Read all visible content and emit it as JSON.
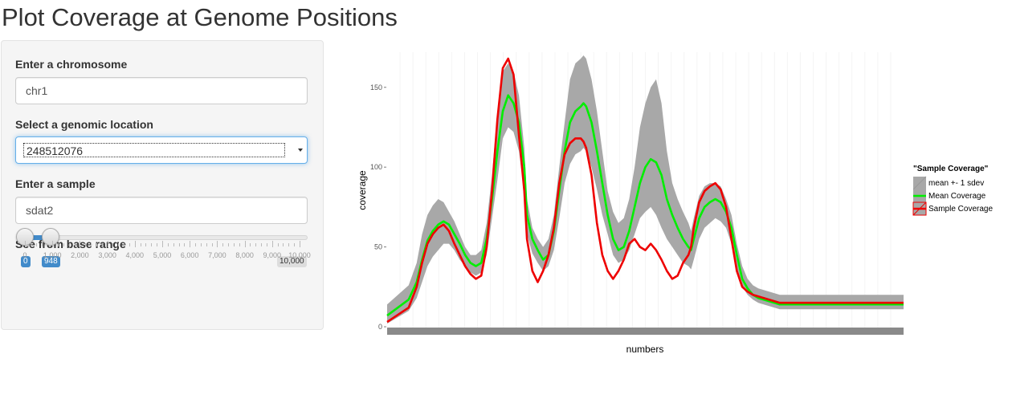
{
  "page": {
    "title": "Plot Coverage at Genome Positions"
  },
  "sidebar": {
    "chromosome": {
      "label": "Enter a chromosome",
      "value": "chr1"
    },
    "location": {
      "label": "Select a genomic location",
      "selected": "248512076"
    },
    "sample": {
      "label": "Enter a sample",
      "value": "sdat2"
    },
    "range": {
      "label": "See from base range",
      "min_badge": "0",
      "value_badge": "948",
      "max_badge": "10,000",
      "selected_from": 0,
      "selected_to": 948,
      "min": 0,
      "max": 10000,
      "tick_labels": [
        "0",
        "1,000",
        "2,000",
        "3,000",
        "4,000",
        "5,000",
        "6,000",
        "7,000",
        "8,000",
        "9,000",
        "10,000"
      ]
    }
  },
  "colors": {
    "band": "#a8a8a8",
    "mean": "#00ee00",
    "sample": "#ee0000",
    "accent": "#428bca"
  },
  "chart_data": {
    "type": "line",
    "title": "",
    "xlabel": "numbers",
    "ylabel": "coverage",
    "ylim": [
      -5,
      172
    ],
    "yticks": [
      0,
      50,
      100,
      150
    ],
    "ytick_labels": [
      "0",
      "50",
      "100",
      "150"
    ],
    "grid": true,
    "legend": {
      "title": "\"Sample Coverage\"",
      "placement": "right",
      "entries": [
        "mean +- 1 sdev",
        "Mean Coverage",
        "Sample Coverage"
      ]
    },
    "x": [
      0,
      40,
      55,
      65,
      75,
      85,
      95,
      105,
      115,
      125,
      135,
      145,
      155,
      165,
      175,
      185,
      195,
      205,
      215,
      225,
      235,
      245,
      255,
      260,
      270,
      280,
      290,
      300,
      310,
      320,
      330,
      340,
      350,
      360,
      365,
      370,
      380,
      390,
      400,
      410,
      420,
      430,
      440,
      450,
      460,
      470,
      480,
      490,
      500,
      510,
      520,
      530,
      540,
      550,
      560,
      565,
      570,
      580,
      590,
      600,
      610,
      620,
      630,
      640,
      650,
      660,
      670,
      680,
      690,
      700,
      710,
      720,
      730,
      740,
      750,
      760,
      770,
      780,
      790,
      800,
      810,
      820,
      830,
      840,
      850,
      860,
      870,
      880,
      890,
      900,
      910,
      920,
      930,
      940,
      950,
      955,
      960
    ],
    "series": [
      {
        "name": "Mean Coverage",
        "values": [
          7,
          17,
          28,
          42,
          54,
          60,
          64,
          66,
          64,
          58,
          52,
          45,
          40,
          38,
          40,
          55,
          80,
          110,
          135,
          145,
          140,
          128,
          100,
          70,
          55,
          48,
          42,
          45,
          60,
          85,
          110,
          128,
          135,
          138,
          140,
          138,
          128,
          110,
          90,
          70,
          55,
          48,
          50,
          60,
          75,
          90,
          100,
          105,
          103,
          95,
          80,
          70,
          62,
          55,
          50,
          48,
          55,
          68,
          75,
          78,
          80,
          78,
          72,
          62,
          45,
          30,
          24,
          20,
          18,
          17,
          16,
          15,
          14,
          14,
          14,
          14,
          14,
          14,
          14,
          14,
          14,
          14,
          14,
          14,
          14,
          14,
          14,
          14,
          14,
          14,
          14,
          14,
          14,
          14,
          14,
          14,
          14
        ]
      },
      {
        "name": "Sample Coverage",
        "values": [
          3,
          12,
          25,
          40,
          52,
          58,
          62,
          64,
          60,
          52,
          45,
          38,
          33,
          30,
          32,
          50,
          85,
          130,
          162,
          168,
          158,
          120,
          85,
          55,
          35,
          28,
          35,
          45,
          62,
          90,
          108,
          115,
          118,
          118,
          116,
          112,
          95,
          65,
          45,
          35,
          30,
          35,
          42,
          52,
          55,
          50,
          48,
          52,
          48,
          42,
          35,
          30,
          32,
          40,
          45,
          50,
          62,
          78,
          85,
          88,
          90,
          86,
          75,
          55,
          35,
          25,
          22,
          20,
          19,
          18,
          17,
          16,
          15,
          15,
          15,
          15,
          15,
          15,
          15,
          15,
          15,
          15,
          15,
          15,
          15,
          15,
          15,
          15,
          15,
          15,
          15,
          15,
          15,
          15,
          15,
          15,
          15
        ]
      },
      {
        "name": "mean +- 1 sdev",
        "values": [
          14,
          26,
          40,
          58,
          70,
          76,
          80,
          78,
          72,
          66,
          58,
          50,
          45,
          45,
          48,
          65,
          95,
          135,
          160,
          165,
          160,
          145,
          112,
          80,
          62,
          55,
          50,
          55,
          70,
          100,
          128,
          155,
          165,
          168,
          170,
          168,
          155,
          135,
          110,
          85,
          72,
          65,
          68,
          80,
          100,
          125,
          140,
          150,
          155,
          140,
          110,
          90,
          80,
          72,
          65,
          60,
          68,
          82,
          88,
          90,
          90,
          88,
          80,
          70,
          52,
          38,
          30,
          26,
          24,
          23,
          22,
          21,
          20,
          20,
          20,
          20,
          20,
          20,
          20,
          20,
          20,
          20,
          20,
          20,
          20,
          20,
          20,
          20,
          20,
          20,
          20,
          20,
          20,
          20,
          20,
          20,
          20
        ]
      },
      {
        "name": "mean +- 1 sdev (lower)",
        "values": [
          2,
          10,
          18,
          28,
          38,
          44,
          48,
          52,
          52,
          48,
          42,
          38,
          34,
          32,
          34,
          45,
          68,
          92,
          118,
          125,
          122,
          110,
          85,
          58,
          46,
          40,
          35,
          38,
          48,
          68,
          90,
          102,
          108,
          110,
          112,
          110,
          100,
          86,
          70,
          58,
          45,
          40,
          42,
          48,
          58,
          68,
          72,
          75,
          70,
          62,
          55,
          50,
          45,
          40,
          38,
          36,
          42,
          55,
          62,
          65,
          68,
          66,
          62,
          52,
          36,
          25,
          20,
          17,
          15,
          14,
          13,
          12,
          11,
          11,
          11,
          11,
          11,
          11,
          11,
          11,
          11,
          11,
          11,
          11,
          11,
          11,
          11,
          11,
          11,
          11,
          11,
          11,
          11,
          11,
          11,
          11,
          11
        ]
      }
    ]
  }
}
